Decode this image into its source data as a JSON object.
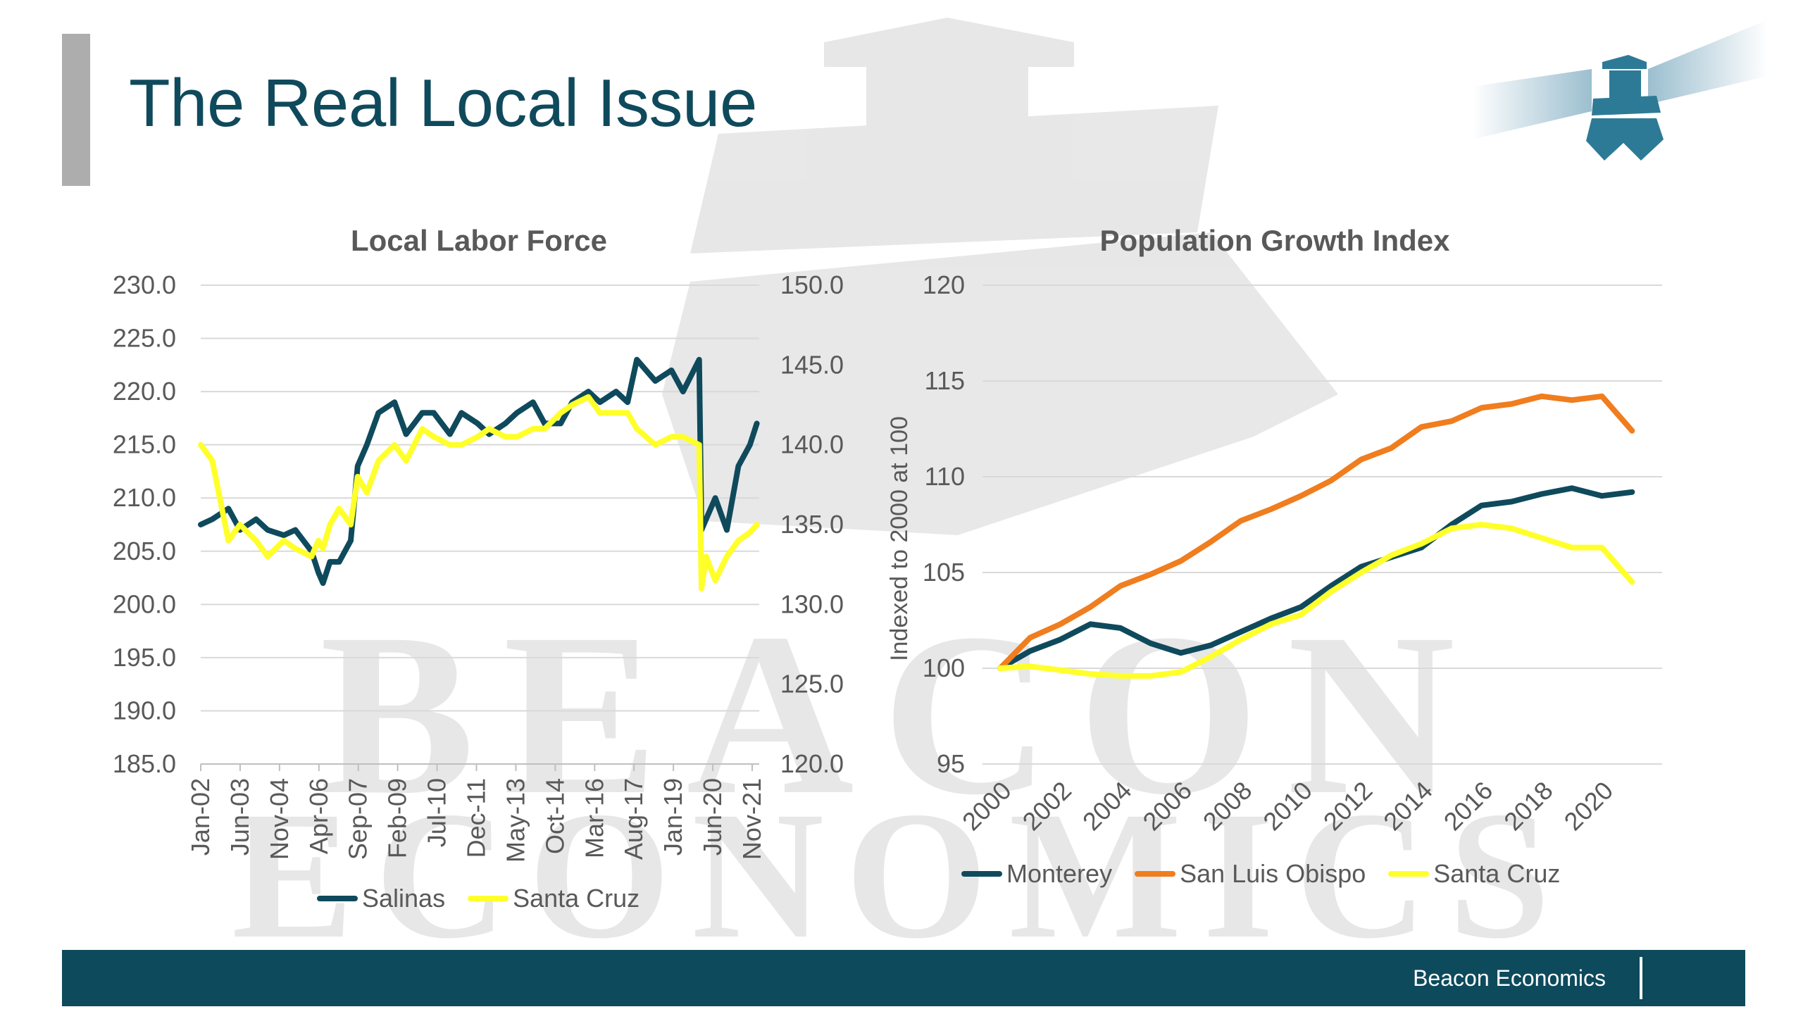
{
  "slide": {
    "title": "The Real Local Issue",
    "footer": "Beacon Economics",
    "watermark_line1": "BEACON",
    "watermark_line2": "ECONOMICS"
  },
  "colors": {
    "navy": "#0f4a5c",
    "orange": "#f07d1e",
    "yellow": "#ffff2a",
    "footer": "#0d4a5c",
    "axis_text": "#595959",
    "grid": "#d9d9d9"
  },
  "chart_data": [
    {
      "type": "line",
      "title": "Local Labor Force",
      "categories": [
        "Jan-02",
        "Jun-03",
        "Nov-04",
        "Apr-06",
        "Sep-07",
        "Feb-09",
        "Jul-10",
        "Dec-11",
        "May-13",
        "Oct-14",
        "Mar-16",
        "Aug-17",
        "Jan-19",
        "Jun-20",
        "Nov-21"
      ],
      "y_ticks": [
        "230.0",
        "225.0",
        "220.0",
        "215.0",
        "210.0",
        "205.0",
        "200.0",
        "195.0",
        "190.0",
        "185.0"
      ],
      "ylim": [
        185,
        230
      ],
      "y2_ticks": [
        "150.0",
        "145.0",
        "140.0",
        "135.0",
        "130.0",
        "125.0",
        "120.0"
      ],
      "y2lim": [
        120,
        150
      ],
      "legend_position": "bottom",
      "grid": true,
      "series": [
        {
          "name": "Salinas",
          "axis": "left",
          "x": [
            "2002-01",
            "2002-06",
            "2003-01",
            "2003-06",
            "2004-01",
            "2004-06",
            "2005-01",
            "2005-06",
            "2006-01",
            "2006-04",
            "2006-06",
            "2006-09",
            "2007-01",
            "2007-06",
            "2007-09",
            "2008-01",
            "2008-06",
            "2009-01",
            "2009-06",
            "2010-01",
            "2010-06",
            "2011-01",
            "2011-06",
            "2012-01",
            "2012-06",
            "2013-01",
            "2013-06",
            "2014-01",
            "2014-06",
            "2015-01",
            "2015-06",
            "2016-01",
            "2016-06",
            "2017-01",
            "2017-06",
            "2017-10",
            "2018-06",
            "2019-01",
            "2019-06",
            "2020-01",
            "2020-02",
            "2020-04",
            "2020-08",
            "2021-01",
            "2021-06",
            "2021-11",
            "2022-02"
          ],
          "values": [
            207.5,
            208,
            209,
            207,
            208,
            207,
            206.5,
            207,
            205,
            203,
            202,
            204,
            204,
            206,
            213,
            215,
            218,
            219,
            216,
            218,
            218,
            216,
            218,
            217,
            216,
            217,
            218,
            219,
            217,
            217,
            219,
            220,
            219,
            220,
            219,
            223,
            221,
            222,
            220,
            223,
            207,
            208,
            210,
            207,
            213,
            215,
            217
          ]
        },
        {
          "name": "Santa Cruz",
          "axis": "right",
          "x": [
            "2002-01",
            "2002-06",
            "2003-01",
            "2003-06",
            "2004-01",
            "2004-06",
            "2005-01",
            "2005-06",
            "2006-01",
            "2006-04",
            "2006-06",
            "2006-09",
            "2007-01",
            "2007-06",
            "2007-09",
            "2008-01",
            "2008-06",
            "2009-01",
            "2009-06",
            "2010-01",
            "2010-06",
            "2011-01",
            "2011-06",
            "2012-01",
            "2012-06",
            "2013-01",
            "2013-06",
            "2014-01",
            "2014-06",
            "2015-01",
            "2015-06",
            "2016-01",
            "2016-06",
            "2017-01",
            "2017-06",
            "2017-10",
            "2018-06",
            "2019-01",
            "2019-06",
            "2020-01",
            "2020-02",
            "2020-04",
            "2020-08",
            "2021-01",
            "2021-06",
            "2021-11",
            "2022-02"
          ],
          "values": [
            140,
            139,
            134,
            135,
            134,
            133,
            134,
            133.5,
            133,
            134,
            133.5,
            135,
            136,
            135,
            138,
            137,
            139,
            140,
            139,
            141,
            140.5,
            140,
            140,
            140.5,
            141,
            140.5,
            140.5,
            141,
            141,
            142,
            142.5,
            143,
            142,
            142,
            142,
            141,
            140,
            140.5,
            140.5,
            140,
            131,
            133,
            131.5,
            133,
            134,
            134.5,
            135
          ]
        }
      ]
    },
    {
      "type": "line",
      "title": "Population Growth Index",
      "ylabel": "Indexed to 2000 at 100",
      "x_ticks": [
        "2000",
        "2002",
        "2004",
        "2006",
        "2008",
        "2010",
        "2012",
        "2014",
        "2016",
        "2018",
        "2020"
      ],
      "y_ticks": [
        "120",
        "115",
        "110",
        "105",
        "100",
        "95"
      ],
      "ylim": [
        95,
        120
      ],
      "legend_position": "bottom",
      "grid": true,
      "x": [
        2000,
        2001,
        2002,
        2003,
        2004,
        2005,
        2006,
        2007,
        2008,
        2009,
        2010,
        2011,
        2012,
        2013,
        2014,
        2015,
        2016,
        2017,
        2018,
        2019,
        2020,
        2021
      ],
      "series": [
        {
          "name": "Monterey",
          "values": [
            100,
            100.9,
            101.5,
            102.3,
            102.1,
            101.3,
            100.8,
            101.2,
            101.9,
            102.6,
            103.2,
            104.3,
            105.3,
            105.8,
            106.3,
            107.5,
            108.5,
            108.7,
            109.1,
            109.4,
            109.0,
            109.2
          ]
        },
        {
          "name": "San Luis Obispo",
          "values": [
            100,
            101.6,
            102.3,
            103.2,
            104.3,
            104.9,
            105.6,
            106.6,
            107.7,
            108.3,
            109.0,
            109.8,
            110.9,
            111.5,
            112.6,
            112.9,
            113.6,
            113.8,
            114.2,
            114.0,
            114.2,
            112.4
          ]
        },
        {
          "name": "Santa Cruz",
          "values": [
            100,
            100.1,
            99.9,
            99.7,
            99.6,
            99.6,
            99.8,
            100.6,
            101.5,
            102.3,
            102.8,
            104.0,
            105.0,
            105.9,
            106.5,
            107.3,
            107.5,
            107.3,
            106.8,
            106.3,
            106.3,
            104.5
          ]
        }
      ]
    }
  ]
}
